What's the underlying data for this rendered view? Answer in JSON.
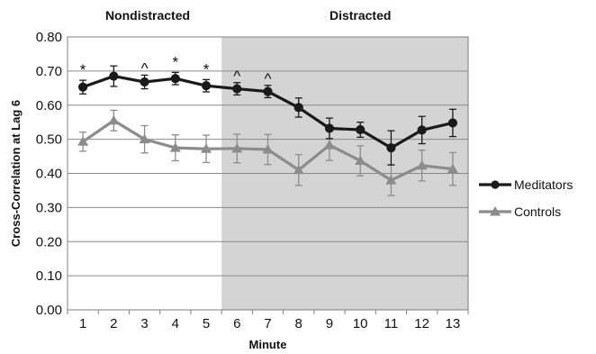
{
  "chart_data": {
    "type": "line",
    "title": "",
    "xlabel": "Minute",
    "ylabel": "Cross-Correlation at Lag 6",
    "ylim": [
      0,
      0.8
    ],
    "y_ticks": [
      "0.00",
      "0.10",
      "0.20",
      "0.30",
      "0.40",
      "0.50",
      "0.60",
      "0.70",
      "0.80"
    ],
    "categories": [
      "1",
      "2",
      "3",
      "4",
      "5",
      "6",
      "7",
      "8",
      "9",
      "10",
      "11",
      "12",
      "13"
    ],
    "grid": true,
    "legend_position": "right",
    "sections": [
      {
        "label": "Nondistracted",
        "minutes": [
          1,
          5
        ],
        "shaded": false
      },
      {
        "label": "Distracted",
        "minutes": [
          6,
          13
        ],
        "shaded": true,
        "color": "#d4d4d4"
      }
    ],
    "series": [
      {
        "name": "Meditators",
        "marker": "circle",
        "color": "#1a1a1a",
        "values": [
          0.653,
          0.685,
          0.668,
          0.678,
          0.657,
          0.648,
          0.64,
          0.593,
          0.532,
          0.528,
          0.475,
          0.527,
          0.548
        ],
        "error": [
          0.02,
          0.03,
          0.02,
          0.018,
          0.018,
          0.018,
          0.018,
          0.028,
          0.03,
          0.022,
          0.05,
          0.04,
          0.04
        ]
      },
      {
        "name": "Controls",
        "marker": "triangle",
        "color": "#8c8c8c",
        "values": [
          0.493,
          0.555,
          0.5,
          0.475,
          0.472,
          0.473,
          0.47,
          0.41,
          0.483,
          0.437,
          0.38,
          0.423,
          0.413
        ],
        "error": [
          0.028,
          0.03,
          0.04,
          0.038,
          0.04,
          0.042,
          0.044,
          0.045,
          0.045,
          0.044,
          0.045,
          0.045,
          0.048
        ]
      }
    ],
    "annotations": [
      {
        "minute": 1,
        "text": "*"
      },
      {
        "minute": 3,
        "text": "^"
      },
      {
        "minute": 4,
        "text": "*"
      },
      {
        "minute": 5,
        "text": "*"
      },
      {
        "minute": 6,
        "text": "^"
      },
      {
        "minute": 7,
        "text": "^"
      }
    ]
  }
}
